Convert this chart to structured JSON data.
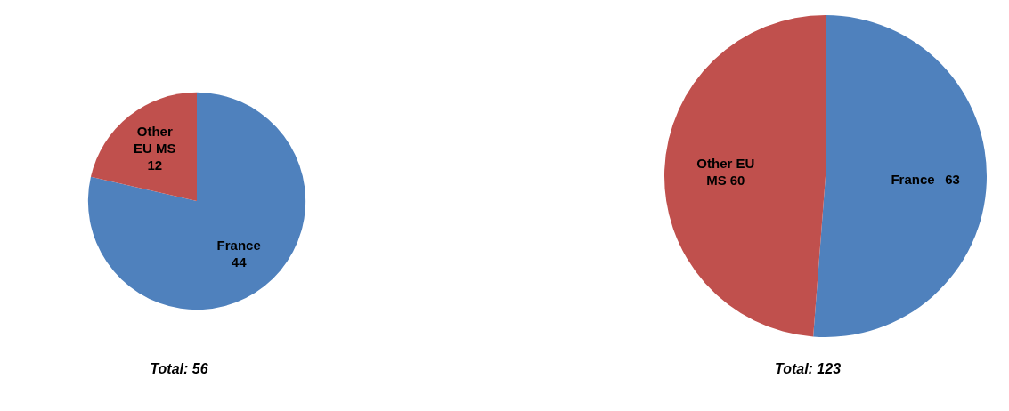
{
  "chart_data": [
    {
      "type": "pie",
      "categories": [
        "France",
        "Other EU MS"
      ],
      "values": [
        44,
        12
      ],
      "colors": [
        "#4f81bd",
        "#c0504d"
      ],
      "data_labels": true,
      "annotations": [
        "Total: 56"
      ]
    },
    {
      "type": "pie",
      "categories": [
        "France",
        "Other EU MS"
      ],
      "values": [
        63,
        60
      ],
      "colors": [
        "#4f81bd",
        "#c0504d"
      ],
      "data_labels": true,
      "annotations": [
        "Total: 123"
      ]
    }
  ]
}
